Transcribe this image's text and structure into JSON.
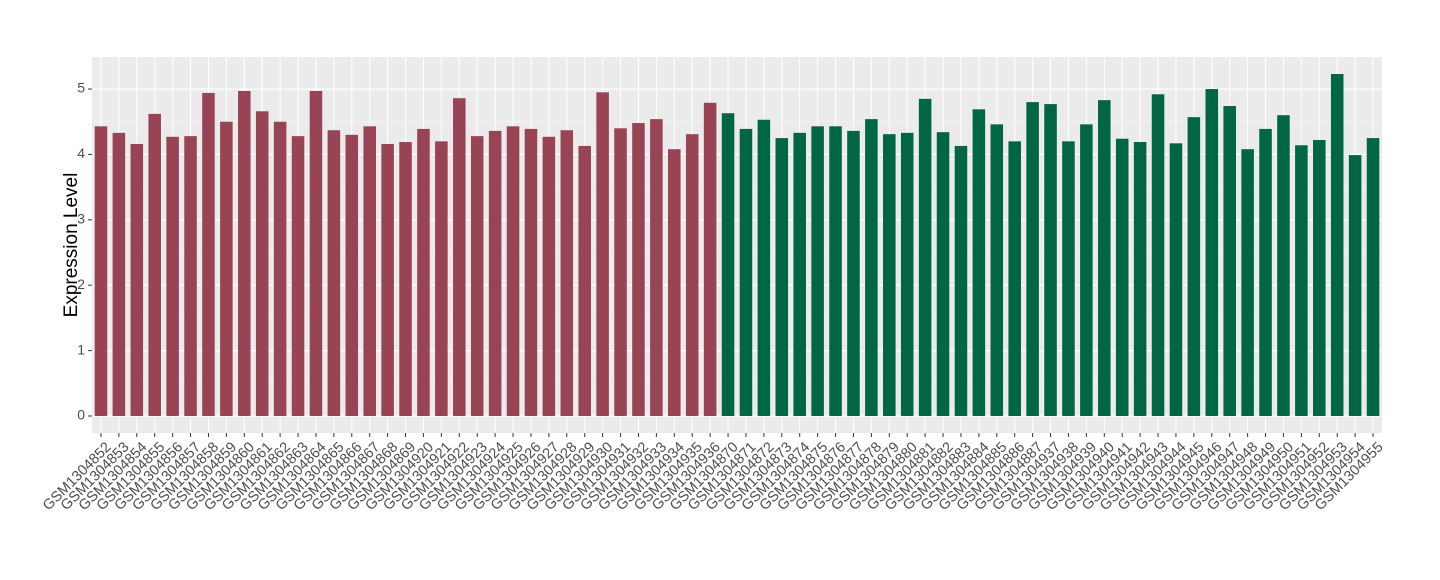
{
  "chart_data": {
    "type": "bar",
    "y_label": "Expression Level",
    "categories": [
      "GSM1304852",
      "GSM1304853",
      "GSM1304854",
      "GSM1304855",
      "GSM1304856",
      "GSM1304857",
      "GSM1304858",
      "GSM1304859",
      "GSM1304860",
      "GSM1304861",
      "GSM1304862",
      "GSM1304863",
      "GSM1304864",
      "GSM1304865",
      "GSM1304866",
      "GSM1304867",
      "GSM1304868",
      "GSM1304869",
      "GSM1304920",
      "GSM1304921",
      "GSM1304922",
      "GSM1304923",
      "GSM1304924",
      "GSM1304925",
      "GSM1304926",
      "GSM1304927",
      "GSM1304928",
      "GSM1304929",
      "GSM1304930",
      "GSM1304931",
      "GSM1304932",
      "GSM1304933",
      "GSM1304934",
      "GSM1304935",
      "GSM1304936",
      "GSM1304870",
      "GSM1304871",
      "GSM1304872",
      "GSM1304873",
      "GSM1304874",
      "GSM1304875",
      "GSM1304876",
      "GSM1304877",
      "GSM1304878",
      "GSM1304879",
      "GSM1304880",
      "GSM1304881",
      "GSM1304882",
      "GSM1304883",
      "GSM1304884",
      "GSM1304885",
      "GSM1304886",
      "GSM1304887",
      "GSM1304937",
      "GSM1304938",
      "GSM1304939",
      "GSM1304940",
      "GSM1304941",
      "GSM1304942",
      "GSM1304943",
      "GSM1304944",
      "GSM1304945",
      "GSM1304946",
      "GSM1304947",
      "GSM1304948",
      "GSM1304949",
      "GSM1304950",
      "GSM1304951",
      "GSM1304952",
      "GSM1304953",
      "GSM1304954",
      "GSM1304955"
    ],
    "values": [
      4.43,
      4.33,
      4.16,
      4.62,
      4.27,
      4.28,
      4.94,
      4.5,
      4.97,
      4.66,
      4.5,
      4.28,
      4.97,
      4.37,
      4.3,
      4.43,
      4.16,
      4.19,
      4.39,
      4.2,
      4.86,
      4.28,
      4.36,
      4.43,
      4.39,
      4.27,
      4.37,
      4.13,
      4.95,
      4.4,
      4.48,
      4.54,
      4.08,
      4.31,
      4.79,
      4.63,
      4.39,
      4.53,
      4.25,
      4.33,
      4.43,
      4.43,
      4.36,
      4.54,
      4.31,
      4.33,
      4.85,
      4.34,
      4.13,
      4.69,
      4.46,
      4.2,
      4.8,
      4.77,
      4.2,
      4.46,
      4.83,
      4.24,
      4.19,
      4.92,
      4.17,
      4.57,
      5.0,
      4.74,
      4.08,
      4.39,
      4.6,
      4.14,
      4.22,
      5.23,
      3.99,
      4.25
    ],
    "colors": [
      "#994455",
      "#994455",
      "#994455",
      "#994455",
      "#994455",
      "#994455",
      "#994455",
      "#994455",
      "#994455",
      "#994455",
      "#994455",
      "#994455",
      "#994455",
      "#994455",
      "#994455",
      "#994455",
      "#994455",
      "#994455",
      "#994455",
      "#994455",
      "#994455",
      "#994455",
      "#994455",
      "#994455",
      "#994455",
      "#994455",
      "#994455",
      "#994455",
      "#994455",
      "#994455",
      "#994455",
      "#994455",
      "#994455",
      "#994455",
      "#994455",
      "#006644",
      "#006644",
      "#006644",
      "#006644",
      "#006644",
      "#006644",
      "#006644",
      "#006644",
      "#006644",
      "#006644",
      "#006644",
      "#006644",
      "#006644",
      "#006644",
      "#006644",
      "#006644",
      "#006644",
      "#006644",
      "#006644",
      "#006644",
      "#006644",
      "#006644",
      "#006644",
      "#006644",
      "#006644",
      "#006644",
      "#006644",
      "#006644",
      "#006644",
      "#006644",
      "#006644",
      "#006644",
      "#006644",
      "#006644",
      "#006644",
      "#006644",
      "#006644"
    ],
    "ylim": [
      -0.26,
      5.49
    ],
    "yticks": [
      0,
      1,
      2,
      3,
      4,
      5
    ],
    "grid": true
  }
}
